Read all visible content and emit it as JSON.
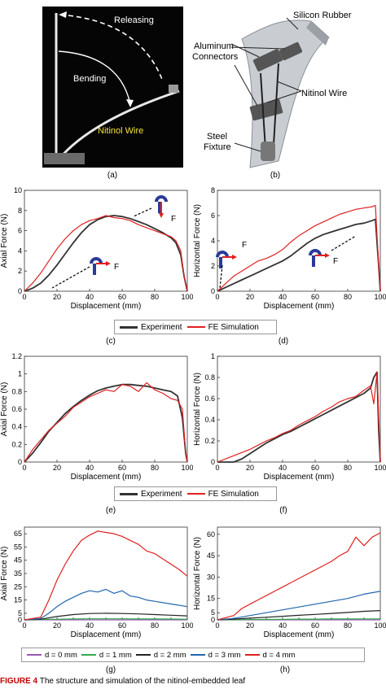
{
  "panel_a": {
    "label": "(a)",
    "text_releasing": "Releasing",
    "text_bending": "Bending",
    "text_wire": "Nitinol Wire"
  },
  "panel_b": {
    "label": "(b)",
    "text_silicon": "Silicon Rubber",
    "text_aluminum_1": "Aluminum",
    "text_aluminum_2": "Connectors",
    "text_nitinol": "Nitinol Wire",
    "text_steel_1": "Steel",
    "text_steel_2": "Fixture"
  },
  "legend_1": {
    "experiment": "Experiment",
    "fe": "FE Simulation"
  },
  "legend_2": {
    "experiment": "Experiment",
    "fe": "FE Simulation"
  },
  "legend_3": {
    "d0": "d = 0 mm",
    "d1": "d = 1 mm",
    "d2": "d = 2 mm",
    "d3": "d = 3 mm",
    "d4": "d = 4 mm"
  },
  "colors": {
    "experiment": "#333333",
    "fe": "#e02020",
    "d0": "#9b59b6",
    "d1": "#2eaa4a",
    "d2": "#222222",
    "d3": "#2166ac",
    "d4": "#e02020",
    "icon": "#2a3a9a",
    "arrow": "#e02020"
  },
  "caption": {
    "fig": "FIGURE 4",
    "text": "The structure and simulation of the nitinol-embedded leaf"
  },
  "chart_data": [
    {
      "id": "c",
      "label": "(c)",
      "type": "line",
      "xlabel": "Displacement (mm)",
      "ylabel": "Axial Force (N)",
      "xlim": [
        0,
        100
      ],
      "ylim": [
        0,
        10
      ],
      "xticks": [
        0,
        20,
        40,
        60,
        80,
        100
      ],
      "yticks": [
        0,
        2,
        4,
        6,
        8,
        10
      ],
      "icon_label": "F",
      "icon_label_2": "F",
      "series": [
        {
          "name": "Experiment",
          "key": "experiment",
          "x": [
            0,
            5,
            10,
            15,
            20,
            25,
            30,
            35,
            40,
            45,
            50,
            55,
            60,
            65,
            70,
            75,
            80,
            85,
            90,
            93,
            96,
            98,
            100
          ],
          "y": [
            0,
            0.3,
            0.8,
            1.6,
            2.6,
            3.7,
            4.8,
            5.8,
            6.6,
            7.1,
            7.4,
            7.5,
            7.4,
            7.2,
            6.9,
            6.6,
            6.2,
            5.8,
            5.3,
            4.8,
            3.6,
            1.5,
            0
          ]
        },
        {
          "name": "FE Simulation",
          "key": "fe",
          "x": [
            0,
            5,
            10,
            15,
            20,
            25,
            30,
            35,
            40,
            45,
            50,
            55,
            60,
            65,
            70,
            75,
            80,
            85,
            90,
            93,
            96,
            98,
            100
          ],
          "y": [
            0,
            0.8,
            1.8,
            3.0,
            4.2,
            5.2,
            6.0,
            6.6,
            7.0,
            7.2,
            7.5,
            7.3,
            7.2,
            7.0,
            6.6,
            6.3,
            6.0,
            5.7,
            5.4,
            5.0,
            4.0,
            1.5,
            0
          ]
        }
      ]
    },
    {
      "id": "d",
      "label": "(d)",
      "type": "line",
      "xlabel": "Displacement (mm)",
      "ylabel": "Horizontal Force (N)",
      "xlim": [
        0,
        100
      ],
      "ylim": [
        0,
        8
      ],
      "xticks": [
        0,
        20,
        40,
        60,
        80,
        100
      ],
      "yticks": [
        0,
        2,
        4,
        6,
        8
      ],
      "icon_label": "F",
      "icon_label_2": "F",
      "series": [
        {
          "name": "Experiment",
          "key": "experiment",
          "x": [
            0,
            5,
            10,
            15,
            20,
            25,
            30,
            35,
            40,
            45,
            50,
            55,
            60,
            65,
            70,
            75,
            80,
            85,
            90,
            95,
            97,
            99,
            100
          ],
          "y": [
            0,
            0.3,
            0.6,
            0.9,
            1.2,
            1.5,
            1.8,
            2.1,
            2.4,
            2.8,
            3.3,
            3.8,
            4.2,
            4.5,
            4.7,
            4.9,
            5.1,
            5.3,
            5.4,
            5.6,
            5.7,
            2.0,
            0
          ]
        },
        {
          "name": "FE Simulation",
          "key": "fe",
          "x": [
            0,
            5,
            10,
            15,
            20,
            25,
            30,
            35,
            40,
            45,
            50,
            55,
            60,
            65,
            70,
            75,
            80,
            85,
            90,
            95,
            97,
            99,
            100
          ],
          "y": [
            0,
            0.6,
            1.2,
            1.6,
            2.0,
            2.4,
            2.6,
            2.9,
            3.3,
            3.9,
            4.4,
            4.8,
            5.2,
            5.5,
            5.8,
            6.1,
            6.3,
            6.5,
            6.6,
            6.7,
            6.8,
            2.0,
            0
          ]
        }
      ]
    },
    {
      "id": "e",
      "label": "(e)",
      "type": "line",
      "xlabel": "Displacement (mm)",
      "ylabel": "Axial Force (N)",
      "xlim": [
        0,
        100
      ],
      "ylim": [
        0,
        1.2
      ],
      "xticks": [
        0,
        20,
        40,
        60,
        80,
        100
      ],
      "yticks": [
        0,
        0.2,
        0.4,
        0.6,
        0.8,
        1.0,
        1.2
      ],
      "series": [
        {
          "name": "Experiment",
          "key": "experiment",
          "x": [
            0,
            5,
            10,
            15,
            20,
            25,
            30,
            35,
            40,
            45,
            50,
            55,
            60,
            65,
            70,
            75,
            80,
            85,
            90,
            94,
            97,
            99,
            100
          ],
          "y": [
            0,
            0.1,
            0.22,
            0.35,
            0.45,
            0.55,
            0.63,
            0.7,
            0.76,
            0.81,
            0.84,
            0.86,
            0.88,
            0.88,
            0.87,
            0.86,
            0.84,
            0.82,
            0.8,
            0.75,
            0.5,
            0.1,
            0
          ]
        },
        {
          "name": "FE Simulation",
          "key": "fe",
          "x": [
            0,
            5,
            10,
            15,
            20,
            25,
            30,
            35,
            40,
            45,
            50,
            55,
            60,
            65,
            70,
            75,
            80,
            85,
            90,
            94,
            97,
            99,
            100
          ],
          "y": [
            0,
            0.14,
            0.25,
            0.36,
            0.44,
            0.52,
            0.62,
            0.68,
            0.74,
            0.78,
            0.82,
            0.8,
            0.88,
            0.86,
            0.8,
            0.9,
            0.82,
            0.78,
            0.72,
            0.7,
            0.6,
            0.1,
            0
          ]
        }
      ]
    },
    {
      "id": "f",
      "label": "(f)",
      "type": "line",
      "xlabel": "Displacement (mm)",
      "ylabel": "Horizontal Force (N)",
      "xlim": [
        0,
        100
      ],
      "ylim": [
        0,
        1.0
      ],
      "xticks": [
        0,
        20,
        40,
        60,
        80,
        100
      ],
      "yticks": [
        0,
        0.2,
        0.4,
        0.6,
        0.8,
        1.0
      ],
      "series": [
        {
          "name": "Experiment",
          "key": "experiment",
          "x": [
            0,
            10,
            15,
            20,
            25,
            30,
            35,
            40,
            45,
            50,
            55,
            60,
            65,
            70,
            75,
            80,
            85,
            90,
            94,
            96,
            98,
            99,
            100
          ],
          "y": [
            0,
            0,
            0.03,
            0.08,
            0.13,
            0.18,
            0.22,
            0.26,
            0.29,
            0.33,
            0.37,
            0.41,
            0.45,
            0.49,
            0.53,
            0.57,
            0.61,
            0.65,
            0.7,
            0.8,
            0.85,
            0.3,
            0
          ]
        },
        {
          "name": "FE Simulation",
          "key": "fe",
          "x": [
            0,
            5,
            10,
            15,
            20,
            25,
            30,
            35,
            40,
            45,
            50,
            55,
            60,
            65,
            70,
            75,
            80,
            85,
            90,
            94,
            96,
            98,
            100
          ],
          "y": [
            0,
            0.03,
            0.06,
            0.09,
            0.12,
            0.16,
            0.2,
            0.23,
            0.27,
            0.3,
            0.35,
            0.39,
            0.43,
            0.48,
            0.52,
            0.57,
            0.6,
            0.62,
            0.68,
            0.72,
            0.55,
            0.85,
            0
          ]
        }
      ]
    },
    {
      "id": "g",
      "label": "(g)",
      "type": "line",
      "xlabel": "Displacement (mm)",
      "ylabel": "Axial Force (N)",
      "xlim": [
        0,
        100
      ],
      "ylim": [
        0,
        70
      ],
      "xticks": [
        0,
        10,
        20,
        30,
        40,
        50,
        60,
        70,
        80,
        90,
        100
      ],
      "yticks": [
        0,
        5,
        15,
        25,
        35,
        45,
        55,
        65
      ],
      "ytick_labels": [
        "0",
        "5",
        "15",
        "25",
        "35",
        "45",
        "55",
        "65"
      ],
      "series": [
        {
          "name": "d = 0 mm",
          "key": "d0",
          "x": [
            0,
            10,
            20,
            30,
            40,
            50,
            60,
            70,
            80,
            90,
            100
          ],
          "y": [
            0,
            0,
            0,
            0,
            0,
            0,
            0,
            0,
            0,
            0,
            0
          ]
        },
        {
          "name": "d = 1 mm",
          "key": "d1",
          "x": [
            0,
            10,
            20,
            30,
            40,
            50,
            60,
            70,
            80,
            90,
            100
          ],
          "y": [
            0,
            0.3,
            0.5,
            0.7,
            0.8,
            0.8,
            0.8,
            0.7,
            0.7,
            0.6,
            0.5
          ]
        },
        {
          "name": "d = 2 mm",
          "key": "d2",
          "x": [
            0,
            10,
            20,
            30,
            40,
            50,
            60,
            70,
            80,
            90,
            100
          ],
          "y": [
            0,
            0.5,
            2.5,
            4.0,
            4.8,
            5.0,
            4.8,
            4.5,
            4.0,
            3.5,
            3.0
          ]
        },
        {
          "name": "d = 3 mm",
          "key": "d3",
          "x": [
            0,
            10,
            15,
            20,
            25,
            30,
            35,
            40,
            45,
            50,
            55,
            60,
            65,
            70,
            75,
            80,
            90,
            100
          ],
          "y": [
            0,
            1,
            5,
            10,
            14,
            17,
            20,
            22,
            21,
            23,
            20,
            22,
            18,
            17,
            15,
            14,
            12,
            10
          ]
        },
        {
          "name": "d = 4 mm",
          "key": "d4",
          "x": [
            0,
            10,
            15,
            20,
            25,
            30,
            35,
            40,
            45,
            50,
            55,
            60,
            65,
            70,
            75,
            80,
            85,
            90,
            95,
            100
          ],
          "y": [
            0,
            2,
            15,
            30,
            42,
            52,
            60,
            64,
            67,
            66,
            65,
            63,
            60,
            57,
            52,
            50,
            46,
            42,
            38,
            33
          ]
        }
      ]
    },
    {
      "id": "h",
      "label": "(h)",
      "type": "line",
      "xlabel": "Displacement (mm)",
      "ylabel": "Horizontal Force (N)",
      "xlim": [
        0,
        100
      ],
      "ylim": [
        0,
        65
      ],
      "xticks": [
        0,
        10,
        20,
        30,
        40,
        50,
        60,
        70,
        80,
        90,
        100
      ],
      "yticks": [
        0,
        5,
        15,
        30,
        45,
        60
      ],
      "ytick_labels": [
        "0",
        "5",
        "15",
        "30",
        "45",
        "60"
      ],
      "series": [
        {
          "name": "d = 0 mm",
          "key": "d0",
          "x": [
            0,
            10,
            20,
            30,
            40,
            50,
            60,
            70,
            80,
            90,
            100
          ],
          "y": [
            0,
            0,
            0,
            0,
            0,
            0,
            0,
            0,
            0,
            0,
            0
          ]
        },
        {
          "name": "d = 1 mm",
          "key": "d1",
          "x": [
            0,
            10,
            20,
            30,
            40,
            50,
            60,
            70,
            80,
            90,
            100
          ],
          "y": [
            0,
            0.1,
            0.2,
            0.3,
            0.4,
            0.5,
            0.5,
            0.6,
            0.6,
            0.7,
            0.7
          ]
        },
        {
          "name": "d = 2 mm",
          "key": "d2",
          "x": [
            0,
            10,
            20,
            30,
            40,
            50,
            60,
            70,
            80,
            90,
            100
          ],
          "y": [
            0,
            0.5,
            1.2,
            1.8,
            2.5,
            3.2,
            3.8,
            4.5,
            5.2,
            6.0,
            6.5
          ]
        },
        {
          "name": "d = 3 mm",
          "key": "d3",
          "x": [
            0,
            10,
            20,
            30,
            40,
            50,
            60,
            70,
            80,
            90,
            100
          ],
          "y": [
            0,
            1,
            3,
            5,
            7,
            9,
            11,
            13,
            15,
            18,
            20
          ]
        },
        {
          "name": "d = 4 mm",
          "key": "d4",
          "x": [
            0,
            10,
            15,
            20,
            25,
            30,
            35,
            40,
            45,
            50,
            55,
            60,
            65,
            70,
            75,
            80,
            85,
            90,
            95,
            100
          ],
          "y": [
            0,
            3,
            8,
            11,
            14,
            17,
            20,
            23,
            26,
            29,
            32,
            35,
            38,
            41,
            45,
            48,
            58,
            52,
            58,
            61
          ]
        }
      ]
    }
  ]
}
